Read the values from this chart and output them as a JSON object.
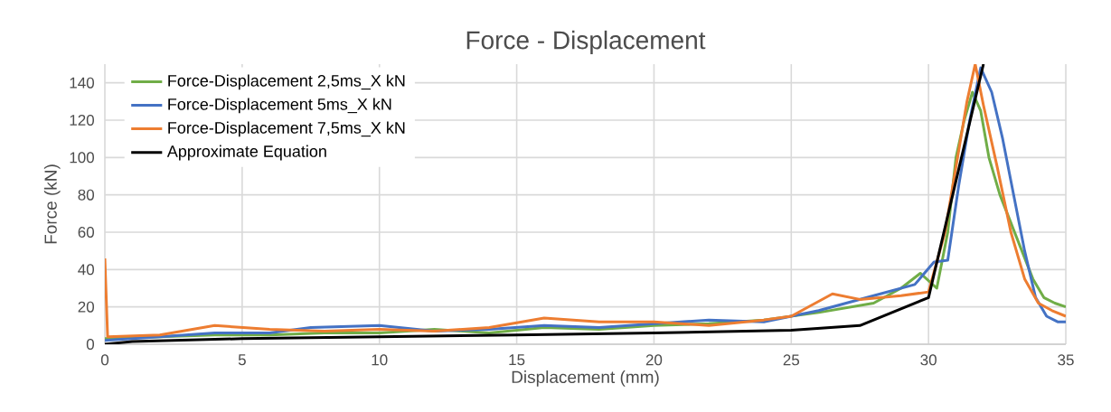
{
  "chart_data": {
    "type": "line",
    "title": "Force - Displacement",
    "xlabel": "Displacement (mm)",
    "ylabel": "Force (kN)",
    "xlim": [
      0,
      35
    ],
    "ylim": [
      0,
      150
    ],
    "xticks": [
      0,
      5,
      10,
      15,
      20,
      25,
      30,
      35
    ],
    "yticks": [
      0,
      20,
      40,
      60,
      80,
      100,
      120,
      140
    ],
    "grid": true,
    "legend": "top left",
    "marker": "none",
    "line_style": "solid",
    "series": [
      {
        "name": "Force-Displacement 2,5ms_X kN",
        "color": "#70ad47",
        "x": [
          0,
          2,
          4,
          6,
          8,
          10,
          12,
          14,
          16,
          18,
          20,
          22,
          24,
          26,
          28,
          29,
          29.7,
          30.3,
          30.7,
          31,
          31.3,
          31.6,
          31.9,
          32.2,
          32.6,
          33,
          33.4,
          33.8,
          34.2,
          34.6,
          35
        ],
        "values": [
          3,
          4,
          5,
          5,
          6,
          6,
          8,
          6,
          9,
          8,
          10,
          11,
          13,
          17,
          22,
          30,
          38,
          30,
          60,
          100,
          120,
          135,
          125,
          100,
          80,
          65,
          50,
          35,
          25,
          22,
          20
        ]
      },
      {
        "name": "Force-Displacement 5ms_X kN",
        "color": "#4472c4",
        "x": [
          0,
          2,
          4,
          6,
          7.5,
          10,
          12,
          14,
          16,
          18,
          20,
          22,
          24,
          26,
          28,
          29.5,
          30.2,
          30.7,
          31.1,
          31.5,
          31.9,
          32.3,
          32.7,
          33.1,
          33.5,
          33.9,
          34.3,
          34.7,
          35
        ],
        "values": [
          2,
          4,
          6,
          6,
          9,
          10,
          7,
          8,
          10,
          9,
          11,
          13,
          12,
          18,
          26,
          32,
          44,
          45,
          85,
          120,
          148,
          135,
          110,
          80,
          50,
          25,
          15,
          12,
          12
        ]
      },
      {
        "name": "Force-Displacement 7,5ms_X kN",
        "color": "#ed7d31",
        "x": [
          0,
          0.1,
          2,
          4,
          6,
          8,
          10,
          12,
          14,
          16,
          18,
          20,
          22,
          24,
          25,
          26.5,
          27.5,
          29,
          30,
          30.6,
          31,
          31.4,
          31.7,
          32,
          32.5,
          33,
          33.5,
          34,
          34.5,
          35
        ],
        "values": [
          46,
          4,
          5,
          10,
          8,
          7,
          8,
          7,
          9,
          14,
          12,
          12,
          10,
          13,
          15,
          27,
          24,
          26,
          28,
          60,
          95,
          130,
          150,
          128,
          95,
          60,
          35,
          22,
          18,
          15
        ]
      },
      {
        "name": "Approximate Equation",
        "color": "#000000",
        "x": [
          0,
          1,
          5,
          10,
          15,
          20,
          25,
          27.5,
          30,
          32
        ],
        "values": [
          0,
          1.5,
          3,
          4,
          5,
          6,
          7.5,
          10,
          25,
          150
        ]
      }
    ]
  }
}
